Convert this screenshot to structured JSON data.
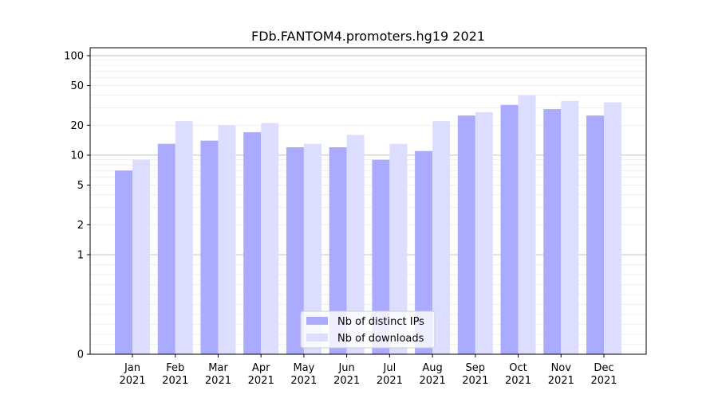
{
  "chart_data": {
    "type": "bar",
    "title": "FDb.FANTOM4.promoters.hg19 2021",
    "categories": [
      "Jan\n2021",
      "Feb\n2021",
      "Mar\n2021",
      "Apr\n2021",
      "May\n2021",
      "Jun\n2021",
      "Jul\n2021",
      "Aug\n2021",
      "Sep\n2021",
      "Oct\n2021",
      "Nov\n2021",
      "Dec\n2021"
    ],
    "series": [
      {
        "name": "Nb of distinct IPs",
        "color": "#aaaaff",
        "values": [
          7,
          13,
          14,
          17,
          12,
          12,
          9,
          11,
          25,
          32,
          29,
          25
        ]
      },
      {
        "name": "Nb of downloads",
        "color": "#ddddff",
        "values": [
          9,
          22,
          20,
          21,
          13,
          16,
          13,
          22,
          27,
          40,
          35,
          34
        ]
      }
    ],
    "y_scale": "symlog",
    "y_ticks": [
      0,
      1,
      2,
      5,
      10,
      20,
      50,
      100
    ],
    "ylim": [
      0,
      120
    ],
    "xlabel": "",
    "ylabel": "",
    "grid": "horizontal major (0-1, 1, 10, 100) and minor",
    "legend_position": "bottom-center"
  }
}
